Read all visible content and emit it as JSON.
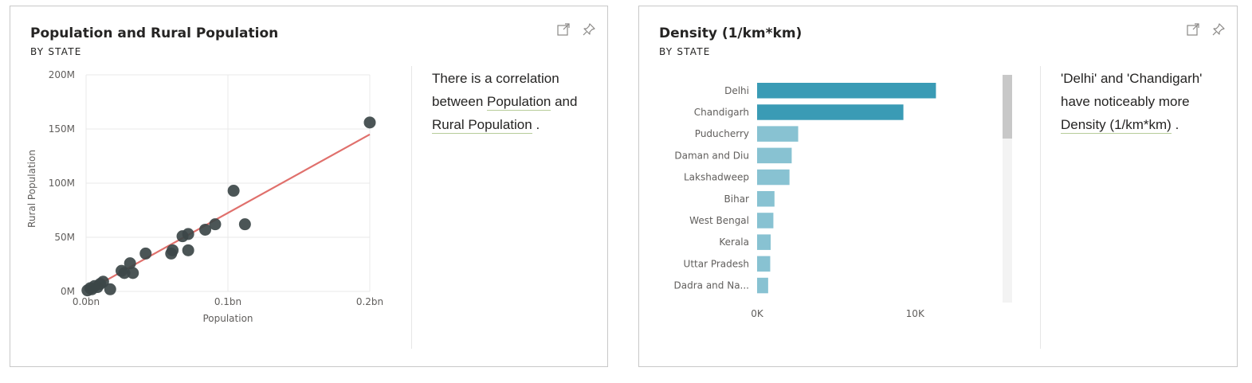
{
  "card1": {
    "title": "Population and Rural Population",
    "subtitle": "BY STATE",
    "icons": [
      "focus-mode-icon",
      "pin-icon"
    ],
    "insight": {
      "t1": "There is a correlation between",
      "m1": "Population",
      "t2": "and",
      "m2": "Rural Population",
      "t3": "."
    }
  },
  "card2": {
    "title": "Density (1/km*km)",
    "subtitle": "BY STATE",
    "icons": [
      "focus-mode-icon",
      "pin-icon"
    ],
    "insight": {
      "t1": "'Delhi' and 'Chandigarh' have noticeably more",
      "m1": "Density (1/km*km)",
      "t2": "."
    }
  },
  "colors": {
    "scatter_point": "#3c4648",
    "trend_line": "#e0706c",
    "bar_highlight": "#3a9bb5",
    "bar_normal": "#88c2d2",
    "grid": "#e8e8e8",
    "axis_text": "#605e5c"
  },
  "chart_data": [
    {
      "type": "scatter",
      "xlabel": "Population",
      "ylabel": "Rural Population",
      "xlim": [
        0,
        0.2
      ],
      "ylim": [
        0,
        200
      ],
      "x_ticks": [
        "0.0bn",
        "0.1bn",
        "0.2bn"
      ],
      "y_ticks": [
        "0M",
        "50M",
        "100M",
        "150M",
        "200M"
      ],
      "grid": true,
      "trendline": {
        "x": [
          0,
          0.2
        ],
        "y": [
          0,
          145
        ]
      },
      "points": [
        {
          "x": 0.001,
          "y": 1
        },
        {
          "x": 0.003,
          "y": 3
        },
        {
          "x": 0.004,
          "y": 2
        },
        {
          "x": 0.006,
          "y": 5
        },
        {
          "x": 0.008,
          "y": 4
        },
        {
          "x": 0.01,
          "y": 7
        },
        {
          "x": 0.012,
          "y": 9
        },
        {
          "x": 0.017,
          "y": 2
        },
        {
          "x": 0.025,
          "y": 19
        },
        {
          "x": 0.027,
          "y": 17
        },
        {
          "x": 0.031,
          "y": 26
        },
        {
          "x": 0.033,
          "y": 17
        },
        {
          "x": 0.042,
          "y": 35
        },
        {
          "x": 0.06,
          "y": 35
        },
        {
          "x": 0.061,
          "y": 38
        },
        {
          "x": 0.068,
          "y": 51
        },
        {
          "x": 0.072,
          "y": 53
        },
        {
          "x": 0.072,
          "y": 38
        },
        {
          "x": 0.084,
          "y": 57
        },
        {
          "x": 0.091,
          "y": 62
        },
        {
          "x": 0.104,
          "y": 93
        },
        {
          "x": 0.112,
          "y": 62
        },
        {
          "x": 0.2,
          "y": 156
        }
      ]
    },
    {
      "type": "bar",
      "orientation": "horizontal",
      "categories": [
        "Delhi",
        "Chandigarh",
        "Puducherry",
        "Daman and Diu",
        "Lakshadweep",
        "Bihar",
        "West Bengal",
        "Kerala",
        "Uttar Pradesh",
        "Dadra and Na..."
      ],
      "values": [
        11320,
        9260,
        2600,
        2190,
        2050,
        1100,
        1030,
        860,
        830,
        700
      ],
      "highlighted": [
        true,
        true,
        false,
        false,
        false,
        false,
        false,
        false,
        false,
        false
      ],
      "xlim": [
        0,
        11400
      ],
      "x_ticks": [
        {
          "value": 0,
          "label": "0K"
        },
        {
          "value": 10000,
          "label": "10K"
        }
      ]
    }
  ]
}
